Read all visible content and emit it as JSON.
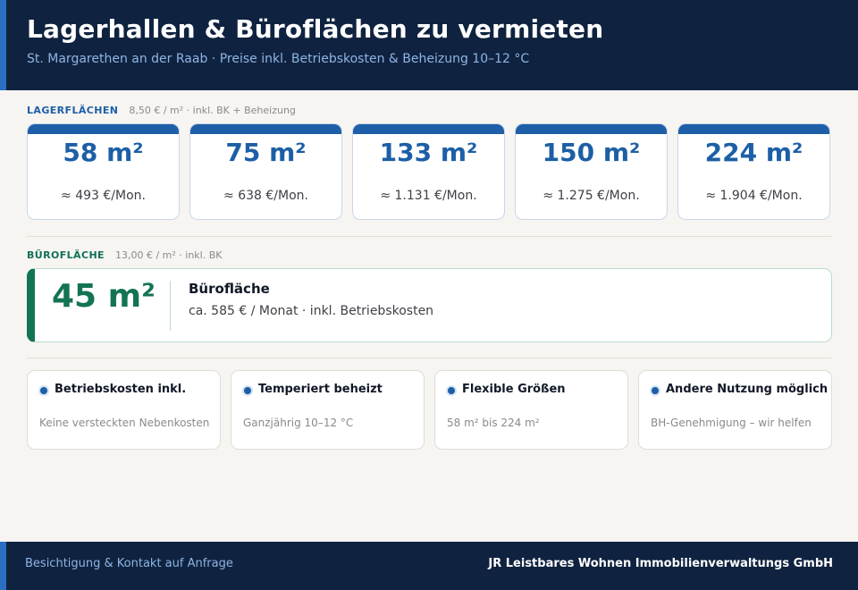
{
  "header": {
    "title": "Lagerhallen & Büroflächen zu vermieten",
    "subtitle": "St. Margarethen an der Raab  ·  Preise inkl. Betriebskosten & Beheizung 10–12 °C"
  },
  "lager": {
    "label": "LAGERFLÄCHEN",
    "meta": "8,50 € / m²  ·  inkl. BK + Beheizung",
    "units": [
      {
        "size": "58 m²",
        "price": "≈ 493 €/Mon."
      },
      {
        "size": "75 m²",
        "price": "≈ 638 €/Mon."
      },
      {
        "size": "133 m²",
        "price": "≈ 1.131 €/Mon."
      },
      {
        "size": "150 m²",
        "price": "≈ 1.275 €/Mon."
      },
      {
        "size": "224 m²",
        "price": "≈ 1.904 €/Mon."
      }
    ]
  },
  "buero": {
    "label": "BÜROFLÄCHE",
    "meta": "13,00 € / m²  ·  inkl. BK",
    "size": "45 m²",
    "title": "Bürofläche",
    "desc": "ca. 585 € / Monat  ·  inkl. Betriebskosten"
  },
  "features": [
    {
      "title": "Betriebskosten inkl.",
      "desc": "Keine versteckten Nebenkosten"
    },
    {
      "title": "Temperiert beheizt",
      "desc": "Ganzjährig 10–12 °C"
    },
    {
      "title": "Flexible Größen",
      "desc": "58 m² bis 224 m²"
    },
    {
      "title": "Andere Nutzung möglich",
      "desc": "BH-Genehmigung – wir helfen"
    }
  ],
  "footer": {
    "left": "Besichtigung & Kontakt auf Anfrage",
    "right": "JR Leistbares Wohnen Immobilienverwaltungs GmbH"
  },
  "colors": {
    "navy": "#0f2340",
    "accent_blue": "#1d5fa6",
    "accent_green": "#127455"
  }
}
